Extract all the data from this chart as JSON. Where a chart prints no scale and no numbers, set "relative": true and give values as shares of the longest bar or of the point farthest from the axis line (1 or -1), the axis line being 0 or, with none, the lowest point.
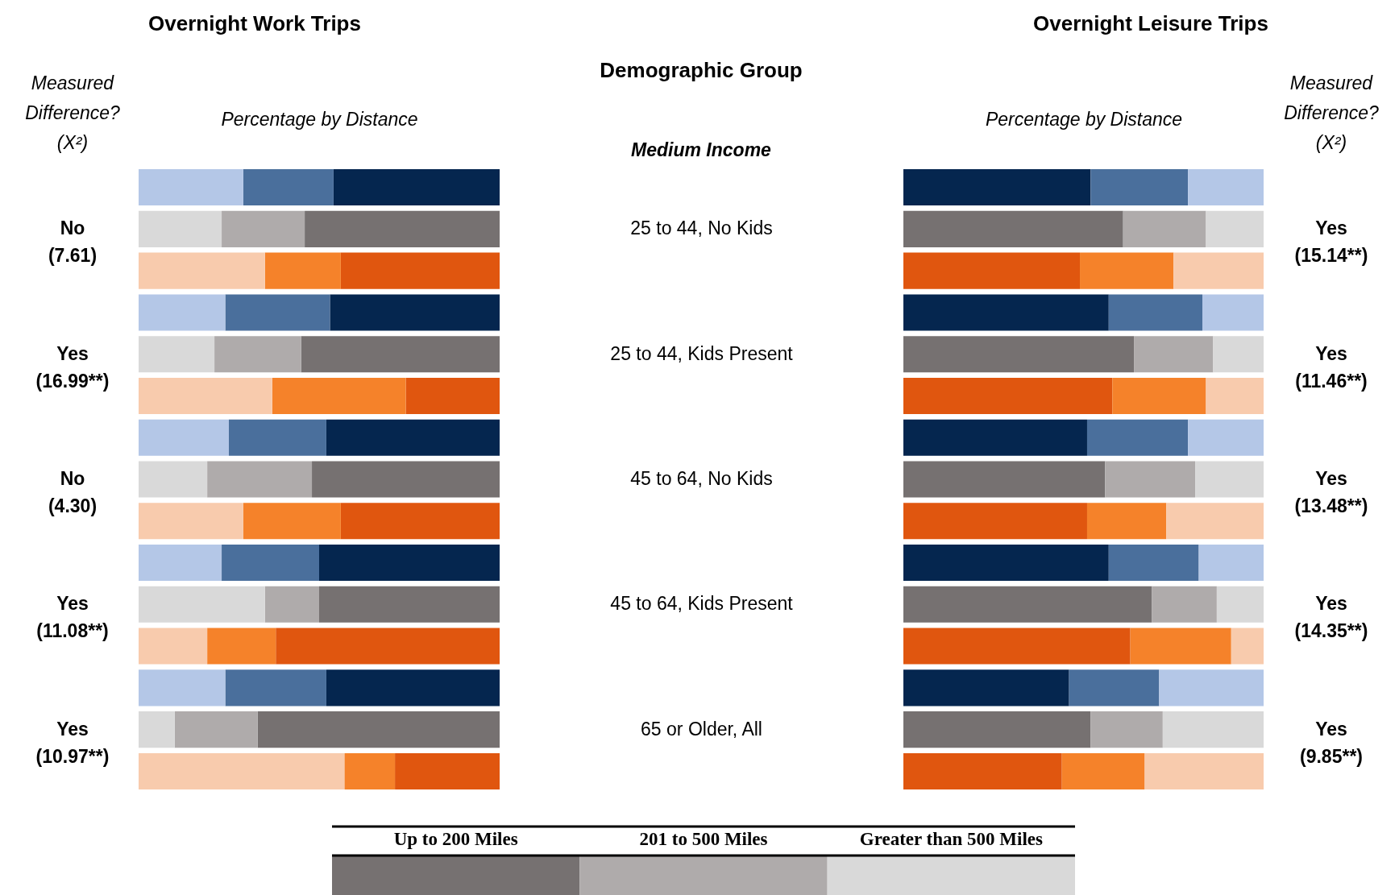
{
  "chart_data": [
    {
      "type": "bar",
      "orientation": "horizontal",
      "stacked": true,
      "relative": true,
      "legend": "bottom",
      "title": "Overnight Work Trips",
      "subtitle": "Medium Income",
      "xlabel": "Percentage by Distance",
      "ylabel": "Measured Difference? (X²)",
      "y2label": "Demographic Group",
      "categories": [
        null,
        "25 to 44, No Kids",
        null,
        null,
        "25 to 44, Kids Present",
        null,
        null,
        "45 to 64, No Kids",
        null,
        null,
        "45 to 64, Kids Present",
        null,
        null,
        "65 or Older, All",
        null
      ],
      "annotations": [
        "No (7.61)",
        "Yes (16.99**)",
        "No (4.30)",
        "Yes (11.08**)",
        "Yes (10.97**)"
      ],
      "series": [
        {
          "name": "Up to 200 Miles",
          "color": "#767171",
          "colors": [
            "#05264f",
            "#767171",
            "#e0560f",
            "#05264f",
            "#767171",
            "#e0560f",
            "#05264f",
            "#767171",
            "#e0560f",
            "#05264f",
            "#767171",
            "#e0560f",
            "#05264f",
            "#767171",
            "#e0560f"
          ],
          "values": [
            0.46,
            0.54,
            0.44,
            0.47,
            0.55,
            0.26,
            0.48,
            0.52,
            0.44,
            0.5,
            0.5,
            0.62,
            0.48,
            0.67,
            0.29
          ]
        },
        {
          "name": "201 to 500 Miles",
          "color": "#afabab",
          "colors": [
            "#4a6f9c",
            "#afabab",
            "#f5822a",
            "#4a6f9c",
            "#afabab",
            "#f5822a",
            "#4a6f9c",
            "#afabab",
            "#f5822a",
            "#4a6f9c",
            "#afabab",
            "#f5822a",
            "#4a6f9c",
            "#afabab",
            "#f5822a"
          ],
          "values": [
            0.25,
            0.23,
            0.21,
            0.29,
            0.24,
            0.37,
            0.27,
            0.29,
            0.27,
            0.27,
            0.15,
            0.19,
            0.28,
            0.23,
            0.14
          ]
        },
        {
          "name": "Greater than 500 Miles",
          "color": "#d9d9d9",
          "colors": [
            "#b4c7e7",
            "#d9d9d9",
            "#f8cbad",
            "#b4c7e7",
            "#d9d9d9",
            "#f8cbad",
            "#b4c7e7",
            "#d9d9d9",
            "#f8cbad",
            "#b4c7e7",
            "#d9d9d9",
            "#f8cbad",
            "#b4c7e7",
            "#d9d9d9",
            "#f8cbad"
          ],
          "values": [
            0.29,
            0.23,
            0.35,
            0.24,
            0.21,
            0.37,
            0.25,
            0.19,
            0.29,
            0.23,
            0.35,
            0.19,
            0.24,
            0.1,
            0.57
          ]
        }
      ]
    },
    {
      "type": "bar",
      "orientation": "horizontal",
      "stacked": true,
      "relative": true,
      "title": "Overnight Leisure Trips",
      "xlabel": "Percentage by Distance",
      "y2label": "Measured Difference? (X²)",
      "categories": [
        null,
        null,
        null,
        null,
        null,
        null,
        null,
        null,
        null,
        null,
        null,
        null,
        null,
        null,
        null
      ],
      "annotations": [
        "Yes (15.14**)",
        "Yes (11.46**)",
        "Yes (13.48**)",
        "Yes (14.35**)",
        "Yes (9.85**)"
      ],
      "series": [
        {
          "colors": [
            "#05264f",
            "#767171",
            "#e0560f",
            "#05264f",
            "#767171",
            "#e0560f",
            "#05264f",
            "#767171",
            "#e0560f",
            "#05264f",
            "#767171",
            "#e0560f",
            "#05264f",
            "#767171",
            "#e0560f"
          ],
          "values": [
            0.52,
            0.61,
            0.49,
            0.57,
            0.64,
            0.58,
            0.51,
            0.56,
            0.51,
            0.57,
            0.69,
            0.63,
            0.46,
            0.52,
            0.44
          ]
        },
        {
          "colors": [
            "#4a6f9c",
            "#afabab",
            "#f5822a",
            "#4a6f9c",
            "#afabab",
            "#f5822a",
            "#4a6f9c",
            "#afabab",
            "#f5822a",
            "#4a6f9c",
            "#afabab",
            "#f5822a",
            "#4a6f9c",
            "#afabab",
            "#f5822a"
          ],
          "values": [
            0.27,
            0.23,
            0.26,
            0.26,
            0.22,
            0.26,
            0.28,
            0.25,
            0.22,
            0.25,
            0.18,
            0.28,
            0.25,
            0.2,
            0.23
          ]
        },
        {
          "colors": [
            "#b4c7e7",
            "#d9d9d9",
            "#f8cbad",
            "#b4c7e7",
            "#d9d9d9",
            "#f8cbad",
            "#b4c7e7",
            "#d9d9d9",
            "#f8cbad",
            "#b4c7e7",
            "#d9d9d9",
            "#f8cbad",
            "#b4c7e7",
            "#d9d9d9",
            "#f8cbad"
          ],
          "values": [
            0.21,
            0.16,
            0.25,
            0.17,
            0.14,
            0.16,
            0.21,
            0.19,
            0.27,
            0.18,
            0.13,
            0.09,
            0.29,
            0.28,
            0.33
          ]
        }
      ]
    }
  ]
}
